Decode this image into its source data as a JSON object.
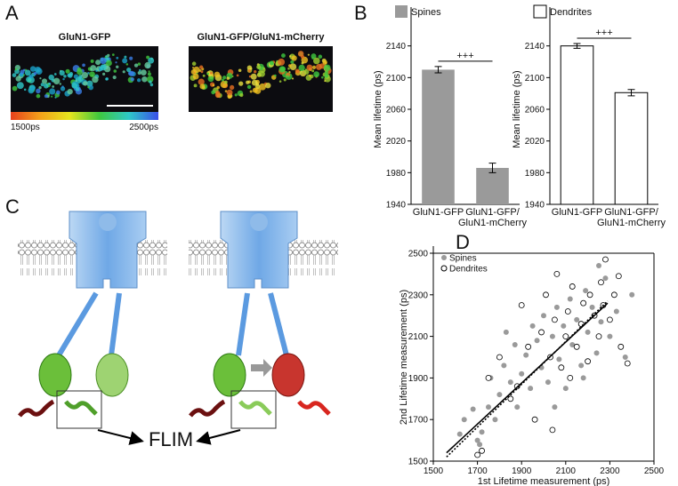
{
  "panel_labels": [
    "A",
    "B",
    "C",
    "D"
  ],
  "imaging": {
    "images": [
      {
        "title": "GluN1-GFP"
      },
      {
        "title": "GluN1-GFP/GluN1-mCherry"
      }
    ],
    "colorbar": {
      "min_label": "1500ps",
      "max_label": "2500ps"
    }
  },
  "diagram": {
    "readout": "FLIM"
  },
  "chart_data": [
    {
      "type": "bar",
      "ylabel": "Mean lifetime (ps)",
      "categories": [
        "GluN1-GFP",
        "GluN1-GFP/GluN1-mCherry"
      ],
      "series": [
        {
          "name": "Spines",
          "color": "#9a9a9a",
          "values": [
            2110,
            1986
          ],
          "errors": [
            4,
            6
          ]
        }
      ],
      "ylim": [
        1940,
        2180
      ],
      "yticks": [
        1940,
        1980,
        2020,
        2060,
        2100,
        2140
      ],
      "annotation": "+++"
    },
    {
      "type": "bar",
      "ylabel": "Mean lifetime (ps)",
      "categories": [
        "GluN1-GFP",
        "GluN1-GFP/GluN1-mCherry"
      ],
      "series": [
        {
          "name": "Dendrites",
          "color": "#ffffff",
          "values": [
            2140,
            2081
          ],
          "errors": [
            3,
            4
          ]
        }
      ],
      "ylim": [
        1940,
        2180
      ],
      "yticks": [
        1940,
        1980,
        2020,
        2060,
        2100,
        2140
      ],
      "annotation": "+++"
    },
    {
      "type": "scatter",
      "xlabel": "1st Lifetime measurement (ps)",
      "ylabel": "2nd Lifetime measurement (ps)",
      "xlim": [
        1500,
        2500
      ],
      "ylim": [
        1500,
        2500
      ],
      "xticks": [
        1500,
        1700,
        1900,
        2100,
        2300,
        2500
      ],
      "yticks": [
        1500,
        1700,
        1900,
        2100,
        2300,
        2500
      ],
      "legend": "top-left",
      "series": [
        {
          "name": "Spines",
          "color": "#9a9a9a",
          "x": [
            1620,
            1640,
            1700,
            1710,
            1720,
            1750,
            1760,
            1780,
            1800,
            1820,
            1850,
            1870,
            1880,
            1900,
            1920,
            1940,
            1950,
            1970,
            1990,
            2000,
            2020,
            2040,
            2060,
            2070,
            2090,
            2100,
            2120,
            2130,
            2150,
            2170,
            2190,
            2200,
            2220,
            2240,
            2260,
            2280,
            2300,
            2330,
            2370,
            2400,
            1680,
            1830,
            2050,
            2180,
            2250
          ],
          "values": [
            1630,
            1700,
            1600,
            1580,
            1640,
            1760,
            1900,
            1700,
            1820,
            1960,
            1880,
            2060,
            1760,
            1920,
            2010,
            1850,
            2150,
            2080,
            1950,
            2200,
            1880,
            2100,
            2240,
            1990,
            2150,
            1850,
            2280,
            2060,
            2180,
            1960,
            2320,
            2120,
            2240,
            2020,
            2170,
            2380,
            2100,
            2220,
            2000,
            2300,
            1750,
            2120,
            1760,
            1900,
            2440
          ]
        },
        {
          "name": "Dendrites",
          "color": "#ffffff",
          "x": [
            1700,
            1720,
            1750,
            1800,
            1850,
            1900,
            1930,
            1960,
            1990,
            2010,
            2030,
            2050,
            2060,
            2080,
            2100,
            2110,
            2130,
            2150,
            2170,
            2180,
            2200,
            2210,
            2230,
            2250,
            2260,
            2270,
            2280,
            2300,
            2320,
            2350,
            2380,
            2040,
            1880,
            2120,
            2340
          ],
          "values": [
            1530,
            1550,
            1900,
            2000,
            1800,
            2250,
            2050,
            1700,
            2120,
            2300,
            2000,
            2180,
            2400,
            1950,
            2100,
            2220,
            2340,
            2050,
            2160,
            2260,
            1980,
            2300,
            2200,
            2100,
            2360,
            2250,
            2470,
            2180,
            2300,
            2050,
            1970,
            1650,
            1860,
            1900,
            2390
          ]
        }
      ],
      "fits": [
        {
          "style": "solid",
          "x": [
            1560,
            2290
          ],
          "values": [
            1540,
            2260
          ]
        },
        {
          "style": "dotted",
          "x": [
            1560,
            2290
          ],
          "values": [
            1520,
            2270
          ]
        }
      ]
    }
  ]
}
